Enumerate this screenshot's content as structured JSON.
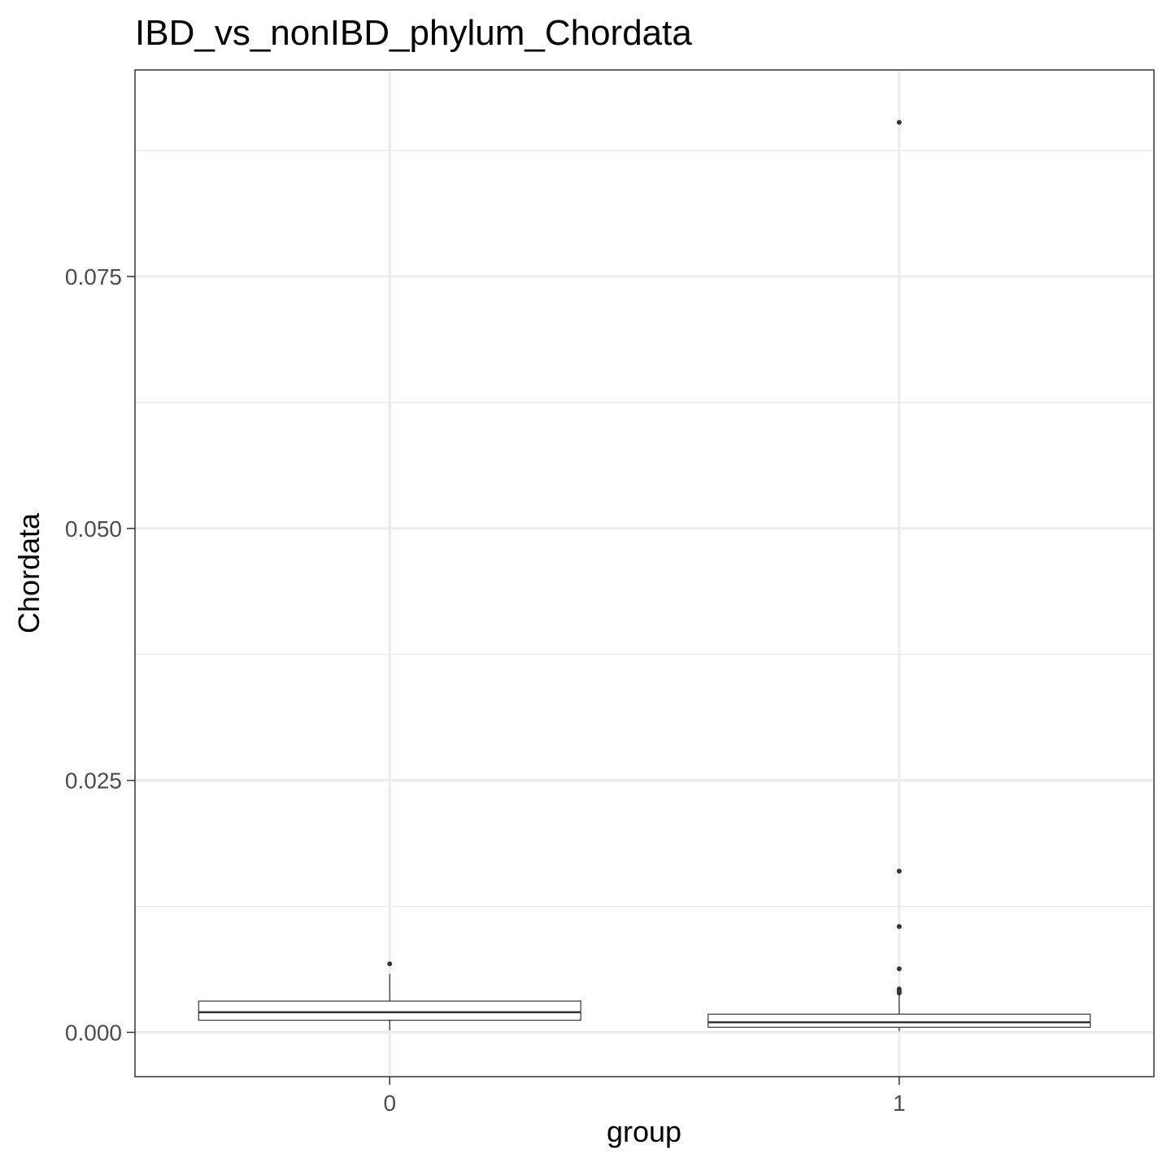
{
  "chart_data": {
    "type": "box",
    "title": "IBD_vs_nonIBD_phylum_Chordata",
    "xlabel": "group",
    "ylabel": "Chordata",
    "categories": [
      "0",
      "1"
    ],
    "ylim": [
      -0.0044,
      0.0955
    ],
    "y_ticks": [
      {
        "value": 0.0,
        "label": "0.000"
      },
      {
        "value": 0.025,
        "label": "0.025"
      },
      {
        "value": 0.05,
        "label": "0.050"
      },
      {
        "value": 0.075,
        "label": "0.075"
      }
    ],
    "y_minor_ticks": [
      0.0125,
      0.0375,
      0.0625,
      0.0875
    ],
    "grid": true,
    "legend": "none",
    "boxes": [
      {
        "category": "0",
        "whisker_low": 0.0002,
        "q1": 0.0012,
        "median": 0.002,
        "q3": 0.0031,
        "whisker_high": 0.0058,
        "outliers": [
          0.0068
        ]
      },
      {
        "category": "1",
        "whisker_low": 0.0001,
        "q1": 0.0005,
        "median": 0.001,
        "q3": 0.0018,
        "whisker_high": 0.0038,
        "outliers": [
          0.0903,
          0.016,
          0.0105,
          0.0063,
          0.0043,
          0.0041,
          0.0039
        ]
      }
    ],
    "colors": {
      "box_stroke": "#333333",
      "median": "#333333",
      "point": "#333333",
      "grid": "#ebebeb",
      "panel_border": "#333333",
      "tick": "#333333"
    }
  }
}
